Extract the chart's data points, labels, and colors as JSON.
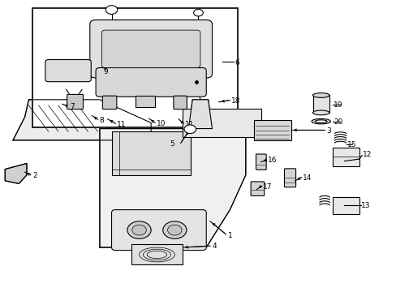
{
  "title": "",
  "bg_color": "#ffffff",
  "line_color": "#000000",
  "fig_width": 4.89,
  "fig_height": 3.6,
  "dpi": 100
}
